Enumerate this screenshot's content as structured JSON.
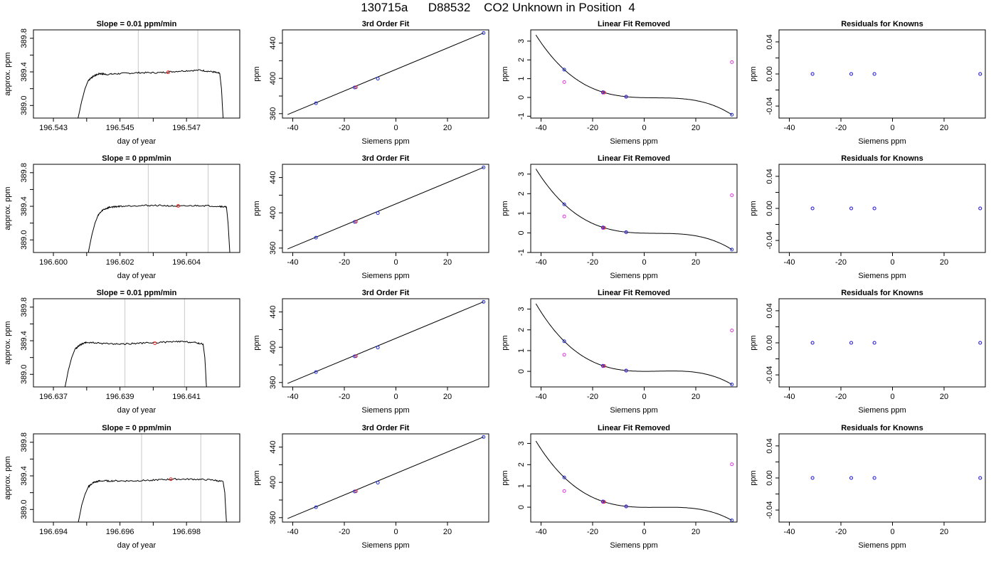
{
  "title": "130715a      D88532    CO2 Unknown in Position  4",
  "colors": {
    "axis": "#000000",
    "trace": "#000000",
    "vline": "#c8c8c8",
    "known": "#1f2bd6",
    "unknown": "#dd33dd",
    "sample": "#ee2222"
  },
  "chart_data": [
    {
      "type": "line",
      "panel": "raw",
      "row": 1,
      "title": "Slope =  0.01  ppm/min",
      "xlabel": "day of year",
      "ylabel": "approx. ppm",
      "xlim": [
        196.5424,
        196.5486
      ],
      "ylim": [
        388.85,
        389.9
      ],
      "xticks": [
        196.543,
        196.545,
        196.547
      ],
      "xtick_labels": [
        "196.543",
        "196.545",
        "196.547"
      ],
      "yticks": [
        389.0,
        389.4,
        389.8
      ],
      "ytick_labels": [
        "389.0",
        "389.4",
        "389.8"
      ],
      "trace": [
        [
          196.54374,
          388.85
        ],
        [
          196.54385,
          389.05
        ],
        [
          196.54395,
          389.2
        ],
        [
          196.54405,
          389.3
        ],
        [
          196.5442,
          389.35
        ],
        [
          196.5444,
          389.38
        ],
        [
          196.5446,
          389.37
        ],
        [
          196.545,
          389.38
        ],
        [
          196.5456,
          389.39
        ],
        [
          196.5462,
          389.39
        ],
        [
          196.5468,
          389.41
        ],
        [
          196.5474,
          389.42
        ],
        [
          196.5478,
          389.4
        ],
        [
          196.548,
          389.38
        ],
        [
          196.54805,
          389.2
        ],
        [
          196.5481,
          388.85
        ]
      ],
      "vlines": [
        196.54555,
        196.54734
      ],
      "marker": {
        "x": 196.54645,
        "y": 389.395
      }
    },
    {
      "type": "scatter",
      "panel": "fit",
      "row": 1,
      "title": "3rd Order Fit",
      "xlabel": "Siemens ppm",
      "ylabel": "ppm",
      "xlim": [
        -44,
        36
      ],
      "ylim": [
        355,
        455
      ],
      "xticks": [
        -40,
        -20,
        0,
        20
      ],
      "xtick_labels": [
        "-40",
        "-20",
        "0",
        "20"
      ],
      "yticks": [
        360,
        400,
        440
      ],
      "ytick_labels": [
        "360",
        "400",
        "440"
      ],
      "line": [
        [
          -42,
          359.0
        ],
        [
          34,
          451.5
        ]
      ],
      "known_points": [
        [
          -31,
          371.8
        ],
        [
          -16,
          389.7
        ],
        [
          -7,
          399.7
        ],
        [
          34,
          451.5
        ]
      ],
      "sample_points": [
        [
          -15.5,
          389.9
        ]
      ]
    },
    {
      "type": "scatter",
      "panel": "residual_fit",
      "row": 1,
      "title": "Linear Fit Removed",
      "xlabel": "Siemens ppm",
      "ylabel": "ppm",
      "xlim": [
        -44,
        36
      ],
      "ylim": [
        -1.1,
        3.6
      ],
      "xticks": [
        -40,
        -20,
        0,
        20
      ],
      "xtick_labels": [
        "-40",
        "-20",
        "0",
        "20"
      ],
      "yticks": [
        -1,
        0,
        1,
        2,
        3
      ],
      "ytick_labels": [
        "-1",
        "0",
        "1",
        "2",
        "3"
      ],
      "curve_coef": [
        0.0,
        -5.7e-07,
        3e-10,
        -2.71e-05
      ],
      "known_points": [
        [
          -31,
          1.48
        ],
        [
          -16,
          0.28
        ],
        [
          -7,
          0.04
        ],
        [
          34,
          -0.92
        ]
      ],
      "unknown_points": [
        [
          -31,
          0.82
        ],
        [
          -16,
          0.25
        ],
        [
          -7,
          0.03
        ],
        [
          34,
          1.88
        ]
      ],
      "sample_points": [
        [
          -15.5,
          0.26
        ]
      ]
    },
    {
      "type": "scatter",
      "panel": "known_residuals",
      "row": 1,
      "title": "Residuals for Knowns",
      "xlabel": "Siemens ppm",
      "ylabel": "ppm",
      "xlim": [
        -44,
        36
      ],
      "ylim": [
        -0.055,
        0.055
      ],
      "xticks": [
        -40,
        -20,
        0,
        20
      ],
      "xtick_labels": [
        "-40",
        "-20",
        "0",
        "20"
      ],
      "yticks": [
        -0.04,
        0.0,
        0.04
      ],
      "ytick_labels": [
        "-0.04",
        "0.00",
        "0.04"
      ],
      "known_points": [
        [
          -31,
          0
        ],
        [
          -16,
          0
        ],
        [
          -7,
          0
        ],
        [
          34,
          0
        ]
      ]
    },
    {
      "type": "line",
      "panel": "raw",
      "row": 2,
      "title": "Slope =  0  ppm/min",
      "xlabel": "day of year",
      "ylabel": "approx. ppm",
      "xlim": [
        196.5994,
        196.6056
      ],
      "ylim": [
        388.85,
        389.9
      ],
      "xticks": [
        196.6,
        196.602,
        196.604
      ],
      "xtick_labels": [
        "196.600",
        "196.602",
        "196.604"
      ],
      "yticks": [
        389.0,
        389.4,
        389.8
      ],
      "ytick_labels": [
        "389.0",
        "389.4",
        "389.8"
      ],
      "trace": [
        [
          196.60105,
          388.85
        ],
        [
          196.60115,
          389.05
        ],
        [
          196.60125,
          389.2
        ],
        [
          196.60135,
          389.3
        ],
        [
          196.6015,
          389.36
        ],
        [
          196.6017,
          389.39
        ],
        [
          196.602,
          389.4
        ],
        [
          196.6026,
          389.41
        ],
        [
          196.6032,
          389.41
        ],
        [
          196.6038,
          389.4
        ],
        [
          196.6044,
          389.41
        ],
        [
          196.605,
          389.4
        ],
        [
          196.6052,
          389.39
        ],
        [
          196.60525,
          389.2
        ],
        [
          196.6053,
          388.85
        ]
      ],
      "vlines": [
        196.60285,
        196.60465
      ],
      "marker": {
        "x": 196.60375,
        "y": 389.405
      }
    },
    {
      "type": "scatter",
      "panel": "fit",
      "row": 2,
      "title": "3rd Order Fit",
      "xlabel": "Siemens ppm",
      "ylabel": "ppm",
      "xlim": [
        -44,
        36
      ],
      "ylim": [
        355,
        455
      ],
      "xticks": [
        -40,
        -20,
        0,
        20
      ],
      "xtick_labels": [
        "-40",
        "-20",
        "0",
        "20"
      ],
      "yticks": [
        360,
        400,
        440
      ],
      "ytick_labels": [
        "360",
        "400",
        "440"
      ],
      "line": [
        [
          -42,
          359.0
        ],
        [
          34,
          451.5
        ]
      ],
      "known_points": [
        [
          -31,
          371.8
        ],
        [
          -16,
          389.7
        ],
        [
          -7,
          399.7
        ],
        [
          34,
          451.5
        ]
      ],
      "sample_points": [
        [
          -15.5,
          389.9
        ]
      ]
    },
    {
      "type": "scatter",
      "panel": "residual_fit",
      "row": 2,
      "title": "Linear Fit Removed",
      "xlabel": "Siemens ppm",
      "ylabel": "ppm",
      "xlim": [
        -44,
        36
      ],
      "ylim": [
        -1.0,
        3.5
      ],
      "xticks": [
        -40,
        -20,
        0,
        20
      ],
      "xtick_labels": [
        "-40",
        "-20",
        "0",
        "20"
      ],
      "yticks": [
        -1,
        0,
        1,
        2,
        3
      ],
      "ytick_labels": [
        "-1",
        "0",
        "1",
        "2",
        "3"
      ],
      "known_points": [
        [
          -31,
          1.46
        ],
        [
          -16,
          0.28
        ],
        [
          -7,
          0.04
        ],
        [
          34,
          -0.85
        ]
      ],
      "unknown_points": [
        [
          -31,
          0.84
        ],
        [
          -16,
          0.25
        ],
        [
          -7,
          0.03
        ],
        [
          34,
          1.92
        ]
      ],
      "sample_points": [
        [
          -15.5,
          0.26
        ]
      ]
    },
    {
      "type": "scatter",
      "panel": "known_residuals",
      "row": 2,
      "title": "Residuals for Knowns",
      "xlabel": "Siemens ppm",
      "ylabel": "ppm",
      "xlim": [
        -44,
        36
      ],
      "ylim": [
        -0.055,
        0.055
      ],
      "xticks": [
        -40,
        -20,
        0,
        20
      ],
      "xtick_labels": [
        "-40",
        "-20",
        "0",
        "20"
      ],
      "yticks": [
        -0.04,
        0.0,
        0.04
      ],
      "ytick_labels": [
        "-0.04",
        "0.00",
        "0.04"
      ],
      "known_points": [
        [
          -31,
          0
        ],
        [
          -16,
          0
        ],
        [
          -7,
          0
        ],
        [
          34,
          0
        ]
      ]
    },
    {
      "type": "line",
      "panel": "raw",
      "row": 3,
      "title": "Slope =  0.01  ppm/min",
      "xlabel": "day of year",
      "ylabel": "approx. ppm",
      "xlim": [
        196.6364,
        196.6426
      ],
      "ylim": [
        388.85,
        389.9
      ],
      "xticks": [
        196.637,
        196.639,
        196.641
      ],
      "xtick_labels": [
        "196.637",
        "196.639",
        "196.641"
      ],
      "yticks": [
        389.0,
        389.4,
        389.8
      ],
      "ytick_labels": [
        "389.0",
        "389.4",
        "389.8"
      ],
      "trace": [
        [
          196.63735,
          388.85
        ],
        [
          196.63745,
          389.05
        ],
        [
          196.63755,
          389.2
        ],
        [
          196.63765,
          389.3
        ],
        [
          196.6378,
          389.35
        ],
        [
          196.638,
          389.38
        ],
        [
          196.6384,
          389.37
        ],
        [
          196.639,
          389.36
        ],
        [
          196.6396,
          389.37
        ],
        [
          196.6402,
          389.38
        ],
        [
          196.6408,
          389.39
        ],
        [
          196.6412,
          389.38
        ],
        [
          196.6415,
          389.36
        ],
        [
          196.64155,
          389.2
        ],
        [
          196.6416,
          388.85
        ]
      ],
      "vlines": [
        196.63915,
        196.64094
      ],
      "marker": {
        "x": 196.64005,
        "y": 389.37
      }
    },
    {
      "type": "scatter",
      "panel": "fit",
      "row": 3,
      "title": "3rd Order Fit",
      "xlabel": "Siemens ppm",
      "ylabel": "ppm",
      "xlim": [
        -44,
        36
      ],
      "ylim": [
        355,
        455
      ],
      "xticks": [
        -40,
        -20,
        0,
        20
      ],
      "xtick_labels": [
        "-40",
        "-20",
        "0",
        "20"
      ],
      "yticks": [
        360,
        400,
        440
      ],
      "ytick_labels": [
        "360",
        "400",
        "440"
      ],
      "line": [
        [
          -42,
          359.0
        ],
        [
          34,
          451.5
        ]
      ],
      "known_points": [
        [
          -31,
          371.8
        ],
        [
          -16,
          389.7
        ],
        [
          -7,
          399.7
        ],
        [
          34,
          451.5
        ]
      ],
      "sample_points": [
        [
          -15.5,
          389.9
        ]
      ]
    },
    {
      "type": "scatter",
      "panel": "residual_fit",
      "row": 3,
      "title": "Linear Fit Removed",
      "xlabel": "Siemens ppm",
      "ylabel": "ppm",
      "xlim": [
        -44,
        36
      ],
      "ylim": [
        -0.75,
        3.5
      ],
      "xticks": [
        -40,
        -20,
        0,
        20
      ],
      "xtick_labels": [
        "-40",
        "-20",
        "0",
        "20"
      ],
      "yticks": [
        0,
        1,
        2,
        3
      ],
      "ytick_labels": [
        "0",
        "1",
        "2",
        "3"
      ],
      "known_points": [
        [
          -31,
          1.45
        ],
        [
          -16,
          0.27
        ],
        [
          -7,
          0.04
        ],
        [
          34,
          -0.63
        ]
      ],
      "unknown_points": [
        [
          -31,
          0.8
        ],
        [
          -16,
          0.25
        ],
        [
          -7,
          0.03
        ],
        [
          34,
          1.97
        ]
      ],
      "sample_points": [
        [
          -15.5,
          0.26
        ]
      ]
    },
    {
      "type": "scatter",
      "panel": "known_residuals",
      "row": 3,
      "title": "Residuals for Knowns",
      "xlabel": "Siemens ppm",
      "ylabel": "ppm",
      "xlim": [
        -44,
        36
      ],
      "ylim": [
        -0.055,
        0.055
      ],
      "xticks": [
        -40,
        -20,
        0,
        20
      ],
      "xtick_labels": [
        "-40",
        "-20",
        "0",
        "20"
      ],
      "yticks": [
        -0.04,
        0.0,
        0.04
      ],
      "ytick_labels": [
        "-0.04",
        "0.00",
        "0.04"
      ],
      "known_points": [
        [
          -31,
          0
        ],
        [
          -16,
          0
        ],
        [
          -7,
          0
        ],
        [
          34,
          0
        ]
      ]
    },
    {
      "type": "line",
      "panel": "raw",
      "row": 4,
      "title": "Slope =  0  ppm/min",
      "xlabel": "day of year",
      "ylabel": "approx. ppm",
      "xlim": [
        196.6934,
        196.6996
      ],
      "ylim": [
        388.85,
        389.9
      ],
      "xticks": [
        196.694,
        196.696,
        196.698
      ],
      "xtick_labels": [
        "196.694",
        "196.696",
        "196.698"
      ],
      "yticks": [
        389.0,
        389.4,
        389.8
      ],
      "ytick_labels": [
        "389.0",
        "389.4",
        "389.8"
      ],
      "trace": [
        [
          196.69475,
          388.85
        ],
        [
          196.69485,
          389.05
        ],
        [
          196.69495,
          389.18
        ],
        [
          196.69505,
          389.27
        ],
        [
          196.6952,
          389.32
        ],
        [
          196.6954,
          389.34
        ],
        [
          196.6958,
          389.34
        ],
        [
          196.6964,
          389.34
        ],
        [
          196.697,
          389.35
        ],
        [
          196.6976,
          389.36
        ],
        [
          196.6982,
          389.36
        ],
        [
          196.6988,
          389.35
        ],
        [
          196.6991,
          389.33
        ],
        [
          196.69915,
          389.2
        ],
        [
          196.6992,
          388.85
        ]
      ],
      "vlines": [
        196.69665,
        196.69843
      ],
      "marker": {
        "x": 196.69753,
        "y": 389.36
      }
    },
    {
      "type": "scatter",
      "panel": "fit",
      "row": 4,
      "title": "3rd Order Fit",
      "xlabel": "Siemens ppm",
      "ylabel": "ppm",
      "xlim": [
        -44,
        36
      ],
      "ylim": [
        355,
        455
      ],
      "xticks": [
        -40,
        -20,
        0,
        20
      ],
      "xtick_labels": [
        "-40",
        "-20",
        "0",
        "20"
      ],
      "yticks": [
        360,
        400,
        440
      ],
      "ytick_labels": [
        "360",
        "400",
        "440"
      ],
      "line": [
        [
          -42,
          359.0
        ],
        [
          34,
          451.5
        ]
      ],
      "known_points": [
        [
          -31,
          371.8
        ],
        [
          -16,
          389.7
        ],
        [
          -7,
          399.7
        ],
        [
          34,
          451.5
        ]
      ],
      "sample_points": [
        [
          -15.5,
          389.9
        ]
      ]
    },
    {
      "type": "scatter",
      "panel": "residual_fit",
      "row": 4,
      "title": "Linear Fit Removed",
      "xlabel": "Siemens ppm",
      "ylabel": "ppm",
      "xlim": [
        -44,
        36
      ],
      "ylim": [
        -0.7,
        3.45
      ],
      "xticks": [
        -40,
        -20,
        0,
        20
      ],
      "xtick_labels": [
        "-40",
        "-20",
        "0",
        "20"
      ],
      "yticks": [
        0,
        1,
        2,
        3
      ],
      "ytick_labels": [
        "0",
        "1",
        "2",
        "3"
      ],
      "known_points": [
        [
          -31,
          1.4
        ],
        [
          -16,
          0.27
        ],
        [
          -7,
          0.04
        ],
        [
          34,
          -0.62
        ]
      ],
      "unknown_points": [
        [
          -31,
          0.76
        ],
        [
          -16,
          0.24
        ],
        [
          -7,
          0.03
        ],
        [
          34,
          2.02
        ]
      ],
      "sample_points": [
        [
          -15.5,
          0.25
        ]
      ]
    },
    {
      "type": "scatter",
      "panel": "known_residuals",
      "row": 4,
      "title": "Residuals for Knowns",
      "xlabel": "Siemens ppm",
      "ylabel": "ppm",
      "xlim": [
        -44,
        36
      ],
      "ylim": [
        -0.055,
        0.055
      ],
      "xticks": [
        -40,
        -20,
        0,
        20
      ],
      "xtick_labels": [
        "-40",
        "-20",
        "0",
        "20"
      ],
      "yticks": [
        -0.04,
        0.0,
        0.04
      ],
      "ytick_labels": [
        "-0.04",
        "0.00",
        "0.04"
      ],
      "known_points": [
        [
          -31,
          0
        ],
        [
          -16,
          0
        ],
        [
          -7,
          0
        ],
        [
          34,
          0
        ]
      ]
    }
  ]
}
